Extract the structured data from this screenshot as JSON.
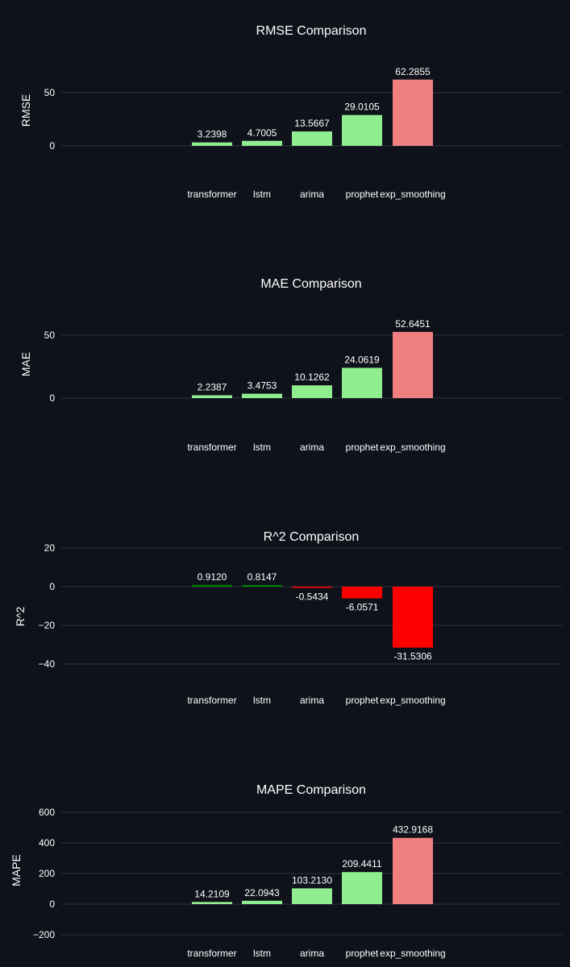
{
  "chart_data": [
    {
      "type": "bar",
      "title": "RMSE Comparison",
      "xlabel": "",
      "ylabel": "RMSE",
      "categories": [
        "transformer",
        "lstm",
        "arima",
        "prophet",
        "exp_smoothing"
      ],
      "values": [
        3.2398,
        4.7005,
        13.5667,
        29.0105,
        62.2855
      ],
      "value_labels": [
        "3.2398",
        "4.7005",
        "13.5667",
        "29.0105",
        "62.2855"
      ],
      "bar_colors": [
        "#90ee90",
        "#90ee90",
        "#90ee90",
        "#90ee90",
        "#f08080"
      ],
      "yticks": [
        0,
        50
      ],
      "ytick_labels": [
        "0",
        "50"
      ],
      "grid": true
    },
    {
      "type": "bar",
      "title": "MAE Comparison",
      "xlabel": "",
      "ylabel": "MAE",
      "categories": [
        "transformer",
        "lstm",
        "arima",
        "prophet",
        "exp_smoothing"
      ],
      "values": [
        2.2387,
        3.4753,
        10.1262,
        24.0619,
        52.6451
      ],
      "value_labels": [
        "2.2387",
        "3.4753",
        "10.1262",
        "24.0619",
        "52.6451"
      ],
      "bar_colors": [
        "#90ee90",
        "#90ee90",
        "#90ee90",
        "#90ee90",
        "#f08080"
      ],
      "yticks": [
        0,
        50
      ],
      "ytick_labels": [
        "0",
        "50"
      ],
      "grid": true
    },
    {
      "type": "bar",
      "title": "R^2 Comparison",
      "xlabel": "",
      "ylabel": "R^2",
      "categories": [
        "transformer",
        "lstm",
        "arima",
        "prophet",
        "exp_smoothing"
      ],
      "values": [
        0.912,
        0.8147,
        -0.5434,
        -6.0571,
        -31.5306
      ],
      "value_labels": [
        "0.9120",
        "0.8147",
        "-0.5434",
        "-6.0571",
        "-31.5306"
      ],
      "bar_colors": [
        "#008000",
        "#008000",
        "#ff0000",
        "#ff0000",
        "#ff0000"
      ],
      "yticks": [
        -40,
        -20,
        0,
        20
      ],
      "ytick_labels": [
        "−40",
        "−20",
        "0",
        "20"
      ],
      "grid": true
    },
    {
      "type": "bar",
      "title": "MAPE Comparison",
      "xlabel": "",
      "ylabel": "MAPE",
      "categories": [
        "transformer",
        "lstm",
        "arima",
        "prophet",
        "exp_smoothing"
      ],
      "values": [
        14.2109,
        22.0943,
        103.213,
        209.4411,
        432.9168
      ],
      "value_labels": [
        "14.2109",
        "22.0943",
        "103.2130",
        "209.4411",
        "432.9168"
      ],
      "bar_colors": [
        "#90ee90",
        "#90ee90",
        "#90ee90",
        "#90ee90",
        "#f08080"
      ],
      "yticks": [
        -200,
        0,
        200,
        400,
        600
      ],
      "ytick_labels": [
        "−200",
        "0",
        "200",
        "400",
        "600"
      ],
      "grid": true
    }
  ]
}
